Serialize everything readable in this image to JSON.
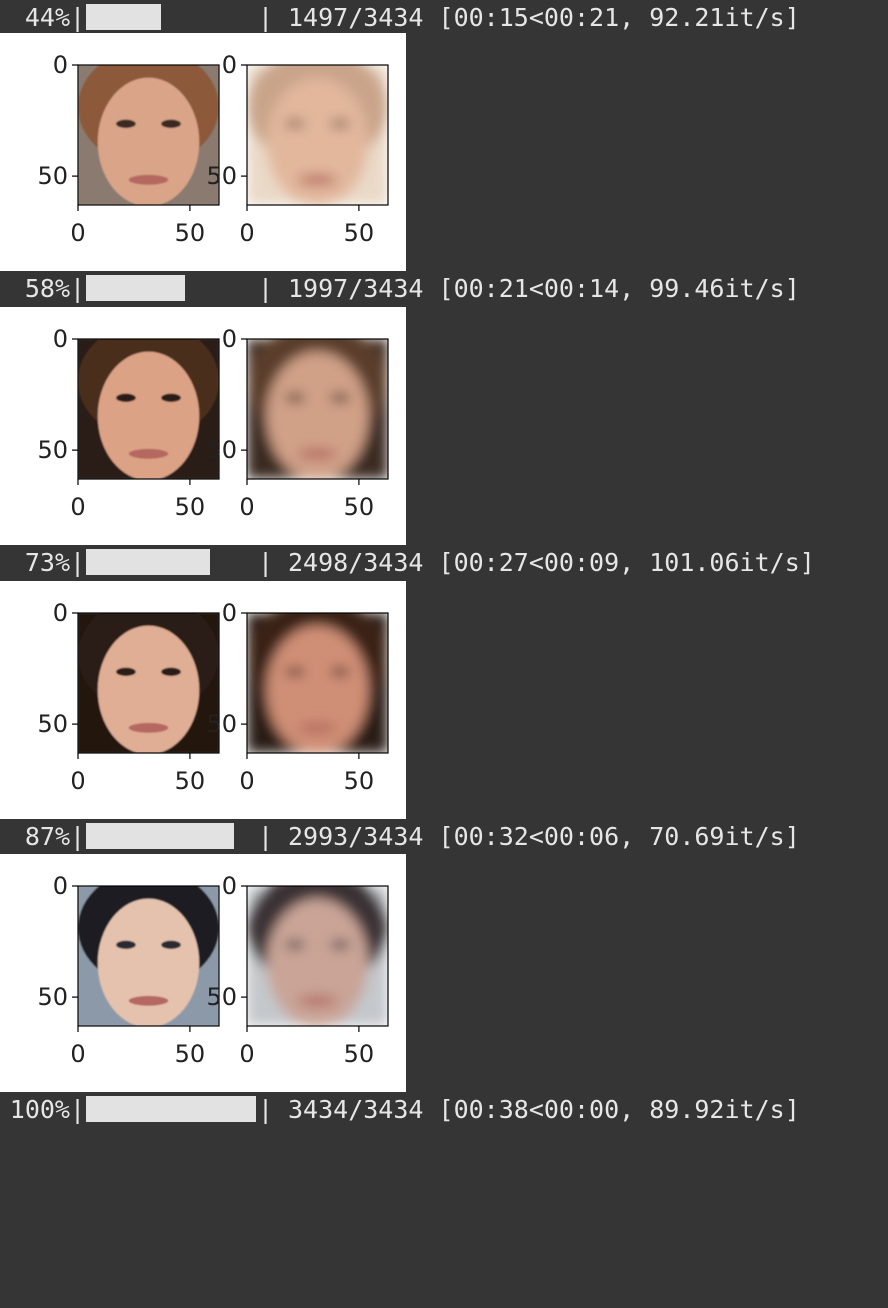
{
  "progress_rows": [
    {
      "percent_text": "44%",
      "percent_value": 0.44,
      "stats": "1497/3434 [00:15<00:21, 92.21it/s]"
    },
    {
      "percent_text": "58%",
      "percent_value": 0.58,
      "stats": "1997/3434 [00:21<00:14, 99.46it/s]"
    },
    {
      "percent_text": "73%",
      "percent_value": 0.73,
      "stats": "2498/3434 [00:27<00:09, 101.06it/s]"
    },
    {
      "percent_text": "87%",
      "percent_value": 0.87,
      "stats": "2993/3434 [00:32<00:06, 70.69it/s]"
    },
    {
      "percent_text": "100%",
      "percent_value": 1.0,
      "stats": "3434/3434 [00:38<00:00, 89.92it/s]"
    }
  ],
  "bar_edge": "|",
  "figures": [
    {
      "ticks_left": [
        "0",
        "50"
      ],
      "ticks_bottom": [
        "0",
        "50"
      ],
      "ticks_left2": [
        "0",
        "50"
      ],
      "ticks_bottom2": [
        "0",
        "50"
      ],
      "orig": {
        "bg": "#8a7a70",
        "skin": "#d9a488",
        "hair": "#8c5a3a",
        "eye": "#3a2a22"
      },
      "recon": {
        "bg": "#ead9c8",
        "skin": "#e2b79c",
        "hair": "#c9a48a",
        "eye": "#8a6a5a"
      }
    },
    {
      "ticks_left": [
        "0",
        "50"
      ],
      "ticks_bottom": [
        "0",
        "50"
      ],
      "ticks_left2": [
        "0",
        "50"
      ],
      "ticks_bottom2": [
        "0",
        "50"
      ],
      "orig": {
        "bg": "#2a1c16",
        "skin": "#dca286",
        "hair": "#4a2e1e",
        "eye": "#2a1a14"
      },
      "recon": {
        "bg": "#3a2a22",
        "skin": "#d0a087",
        "hair": "#5a3c2c",
        "eye": "#4a3228"
      }
    },
    {
      "ticks_left": [
        "0",
        "50"
      ],
      "ticks_bottom": [
        "0",
        "50"
      ],
      "ticks_left2": [
        "0",
        "50"
      ],
      "ticks_bottom2": [
        "0",
        "50"
      ],
      "orig": {
        "bg": "#20140f",
        "skin": "#e0ad95",
        "hair": "#2a1a14",
        "eye": "#2a1a14"
      },
      "recon": {
        "bg": "#2c1a14",
        "skin": "#cf8f76",
        "hair": "#3a2218",
        "eye": "#5a3228"
      }
    },
    {
      "ticks_left": [
        "0",
        "50"
      ],
      "ticks_bottom": [
        "0",
        "50"
      ],
      "ticks_left2": [
        "0",
        "50"
      ],
      "ticks_bottom2": [
        "0",
        "50"
      ],
      "orig": {
        "bg": "#8c99a8",
        "skin": "#e5c2ae",
        "hair": "#1c1c22",
        "eye": "#2a2a30"
      },
      "recon": {
        "bg": "#c4c8cc",
        "skin": "#c9a497",
        "hair": "#3a3034",
        "eye": "#4a3a3a"
      }
    }
  ]
}
